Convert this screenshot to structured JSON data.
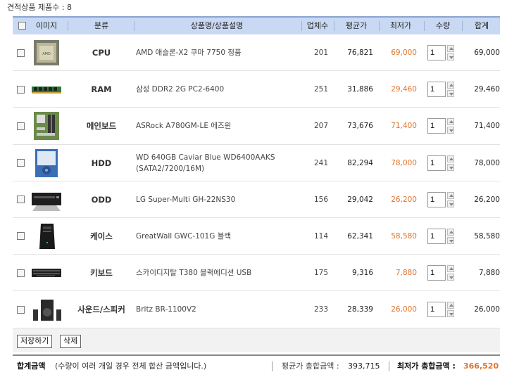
{
  "summary": {
    "count_text": "견적상품 제품수 : 8"
  },
  "table": {
    "headers": {
      "image": "이미지",
      "category": "분류",
      "name": "상품명/상품설명",
      "vendors": "업체수",
      "avg": "평균가",
      "lowest": "최저가",
      "qty": "수량",
      "sum": "합계"
    },
    "rows": [
      {
        "category": "CPU",
        "name": "AMD 애슬론-X2 쿠마 7750 정품",
        "vendors": "201",
        "avg": "76,821",
        "lowest": "69,000",
        "qty": "1",
        "sum": "69,000",
        "thumb_icon": "cpu-icon"
      },
      {
        "category": "RAM",
        "name": "삼성 DDR2 2G PC2-6400",
        "vendors": "251",
        "avg": "31,886",
        "lowest": "29,460",
        "qty": "1",
        "sum": "29,460",
        "thumb_icon": "ram-icon"
      },
      {
        "category": "메인보드",
        "name": "ASRock A780GM-LE 에즈윈",
        "vendors": "207",
        "avg": "73,676",
        "lowest": "71,400",
        "qty": "1",
        "sum": "71,400",
        "thumb_icon": "motherboard-icon"
      },
      {
        "category": "HDD",
        "name": "WD 640GB Caviar Blue WD6400AAKS (SATA2/7200/16M)",
        "vendors": "241",
        "avg": "82,294",
        "lowest": "78,000",
        "qty": "1",
        "sum": "78,000",
        "thumb_icon": "hdd-icon"
      },
      {
        "category": "ODD",
        "name": "LG Super-Multi GH-22NS30",
        "vendors": "156",
        "avg": "29,042",
        "lowest": "26,200",
        "qty": "1",
        "sum": "26,200",
        "thumb_icon": "odd-icon"
      },
      {
        "category": "케이스",
        "name": "GreatWall GWC-101G 블랙",
        "vendors": "114",
        "avg": "62,341",
        "lowest": "58,580",
        "qty": "1",
        "sum": "58,580",
        "thumb_icon": "case-icon"
      },
      {
        "category": "키보드",
        "name": "스카이디지탈 T380 블랙에디션 USB",
        "vendors": "175",
        "avg": "9,316",
        "lowest": "7,880",
        "qty": "1",
        "sum": "7,880",
        "thumb_icon": "keyboard-icon"
      },
      {
        "category": "사운드/스피커",
        "name": "Britz BR-1100V2",
        "vendors": "233",
        "avg": "28,339",
        "lowest": "26,000",
        "qty": "1",
        "sum": "26,000",
        "thumb_icon": "speaker-icon"
      }
    ]
  },
  "actions": {
    "save_label": "저장하기",
    "delete_label": "삭제"
  },
  "totals": {
    "label": "합계금액",
    "note": "(수량이 여러 개일 경우 전체 합산 금액입니다.)",
    "avg_label": "평균가 총합금액 :",
    "avg_value": "393,715",
    "low_label": "최저가 총합금액 :",
    "low_value": "366,520"
  },
  "colors": {
    "header_bg": "#c9d9f3",
    "lowest_price": "#e0742c"
  }
}
